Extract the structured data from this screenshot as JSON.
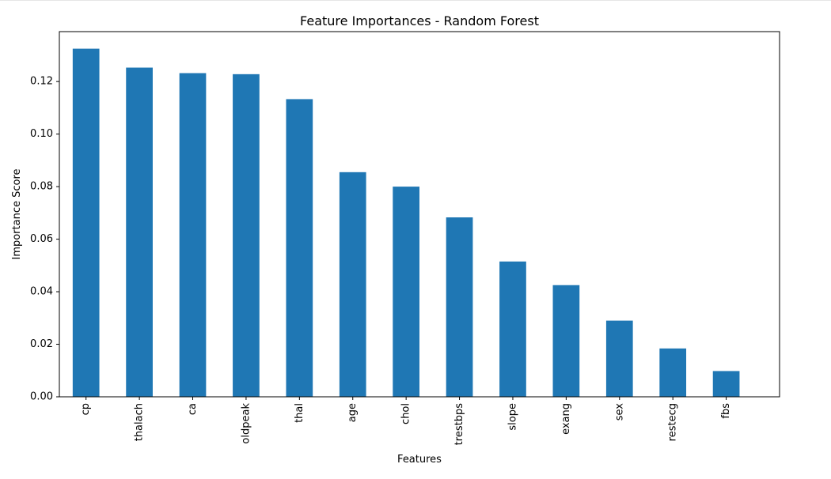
{
  "chart_data": {
    "type": "bar",
    "title": "Feature Importances - Random Forest",
    "xlabel": "Features",
    "ylabel": "Importance Score",
    "categories": [
      "cp",
      "thalach",
      "ca",
      "oldpeak",
      "thal",
      "age",
      "chol",
      "trestbps",
      "slope",
      "exang",
      "sex",
      "restecg",
      "fbs"
    ],
    "values": [
      0.1325,
      0.1253,
      0.1232,
      0.1228,
      0.1133,
      0.0855,
      0.08,
      0.0683,
      0.0515,
      0.0425,
      0.029,
      0.0184,
      0.0098
    ],
    "ylim": [
      0,
      0.139
    ],
    "yticks": [
      0.0,
      0.02,
      0.04,
      0.06,
      0.08,
      0.1,
      0.12
    ],
    "ytick_labels": [
      "0.00",
      "0.02",
      "0.04",
      "0.06",
      "0.08",
      "0.10",
      "0.12"
    ],
    "grid": false,
    "legend": "none",
    "bar_color": "#1f77b4"
  }
}
